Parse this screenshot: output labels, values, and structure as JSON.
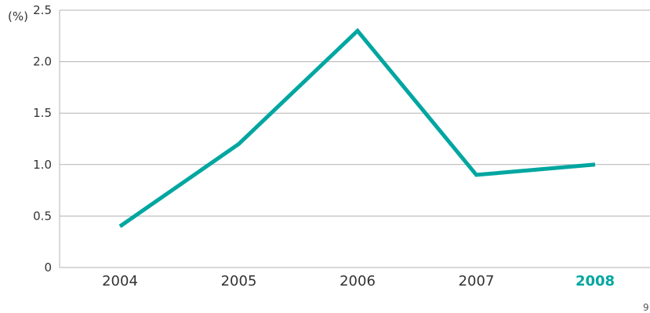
{
  "chart_data": {
    "type": "line",
    "unit_label": "(%)",
    "categories": [
      "2004",
      "2005",
      "2006",
      "2007",
      "2008"
    ],
    "highlight_category": "2008",
    "series": [
      {
        "values": [
          0.4,
          1.2,
          2.3,
          0.9,
          1.0
        ],
        "color": "#00a6a0"
      }
    ],
    "ylim": [
      0,
      2.5
    ],
    "y_ticks": [
      "0",
      "0.5",
      "1.0",
      "1.5",
      "2.0",
      "2.5"
    ],
    "grid": true,
    "highlight_color": "#00a6a0"
  },
  "page_number": "9"
}
